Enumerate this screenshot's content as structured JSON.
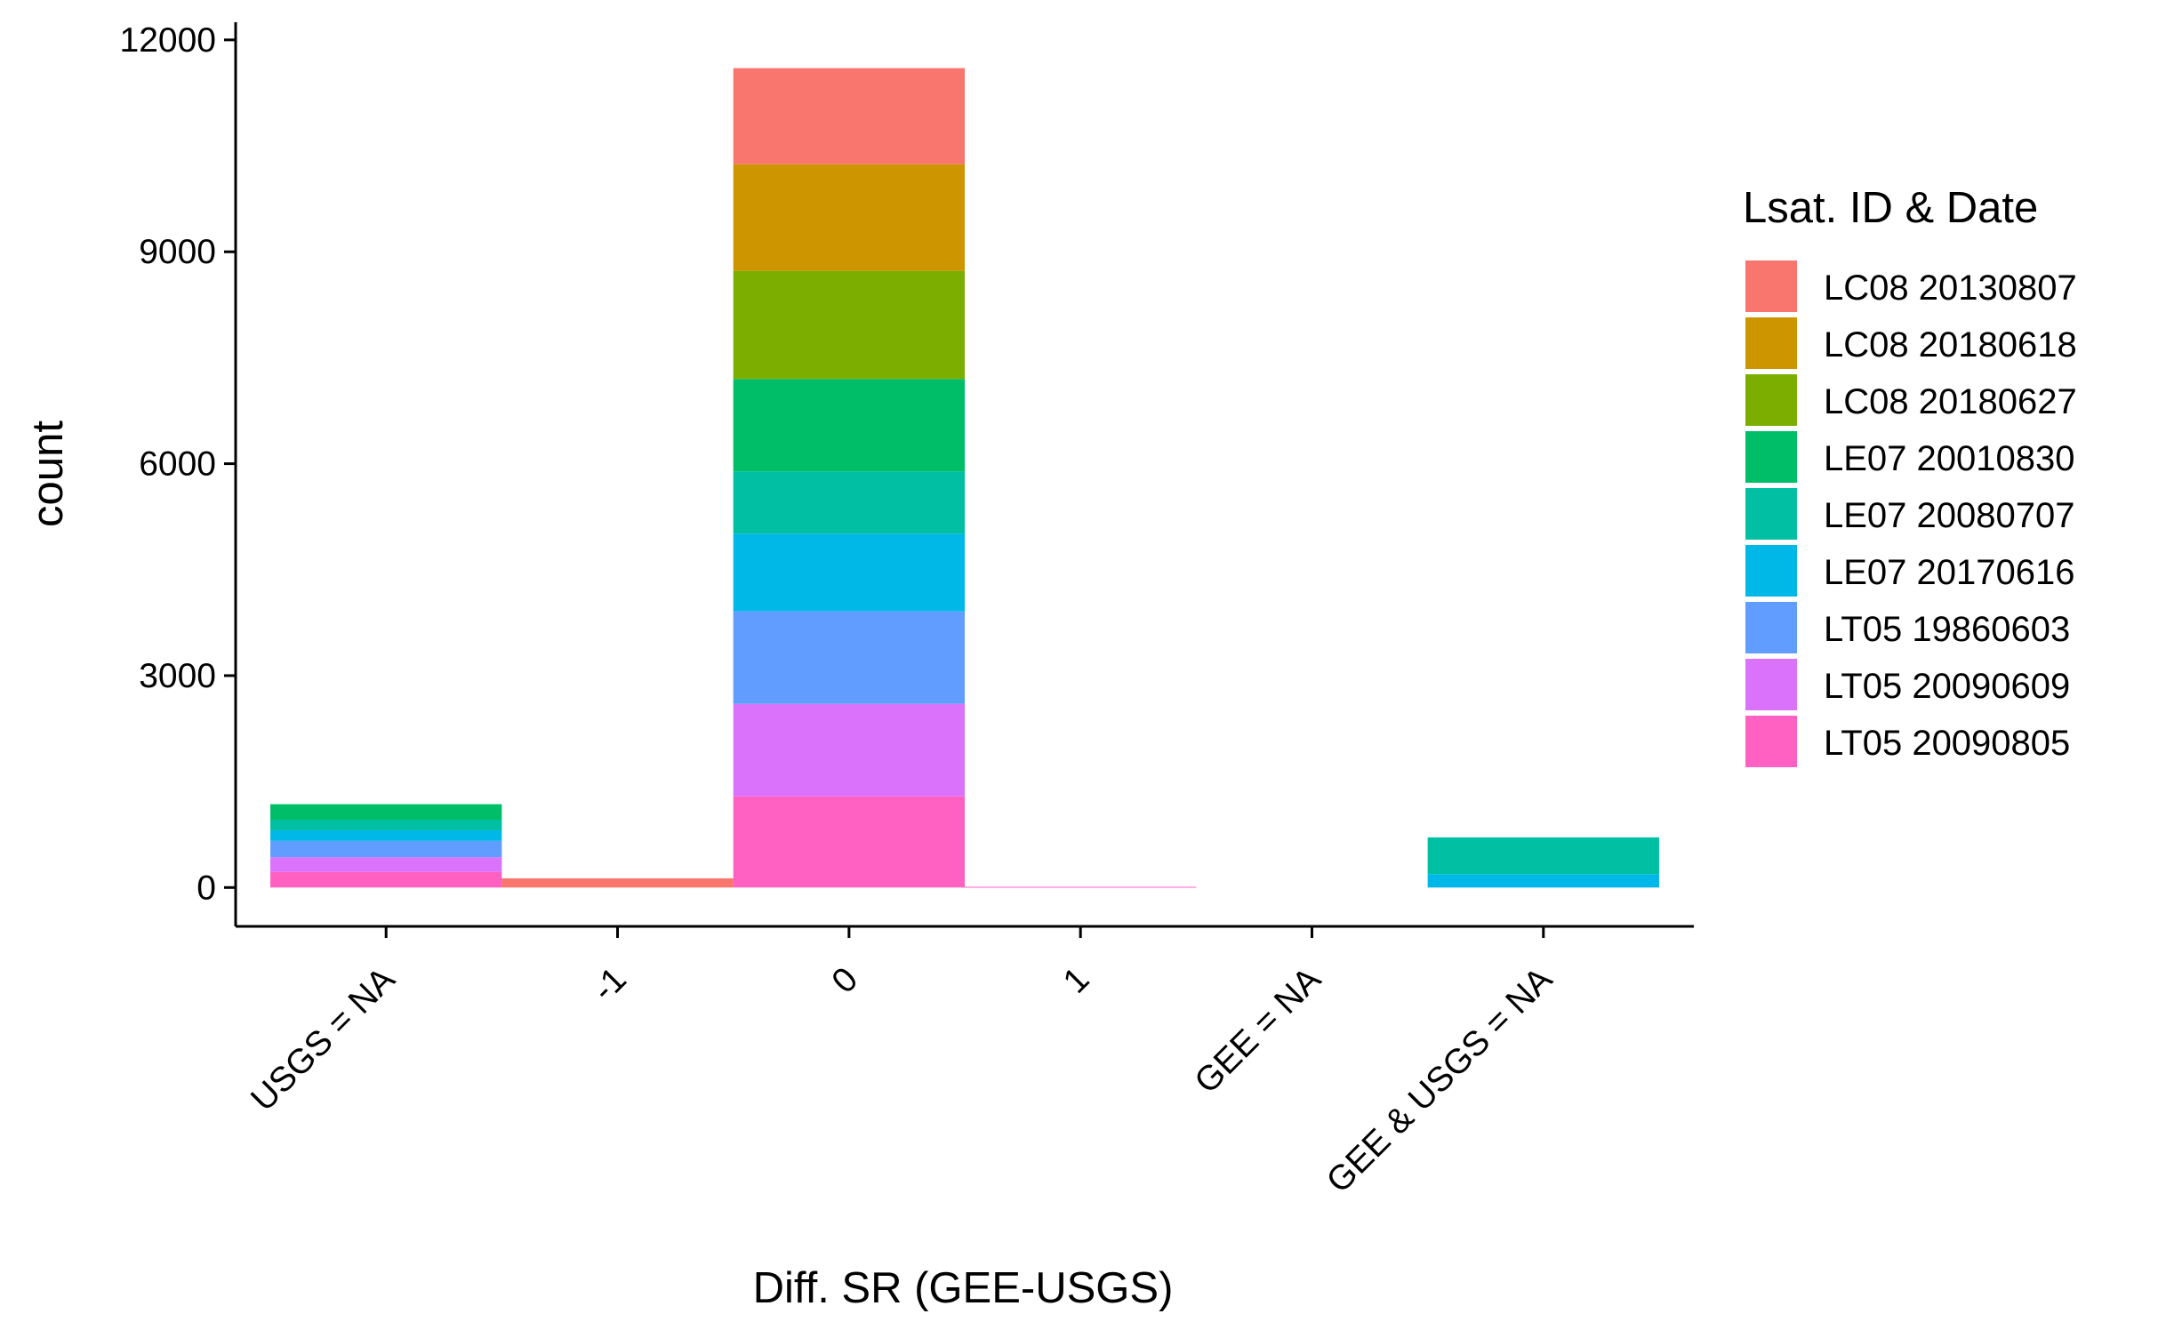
{
  "chart_data": {
    "type": "bar",
    "stacked": true,
    "title": "",
    "xlabel": "Diff. SR (GEE-USGS)",
    "ylabel": "count",
    "categories": [
      "USGS = NA",
      "-1",
      "0",
      "1",
      "GEE = NA",
      "GEE & USGS = NA"
    ],
    "ylim": [
      -550,
      12250
    ],
    "yticks": [
      0,
      3000,
      6000,
      9000,
      12000
    ],
    "ytick_labels": [
      "0",
      "3000",
      "6000",
      "9000",
      "12000"
    ],
    "grid": false,
    "legend": {
      "title": "Lsat. ID & Date",
      "position": "right"
    },
    "series": [
      {
        "name": "LC08 20130807",
        "color": "#F8766D",
        "values": [
          0,
          130,
          1360,
          0,
          0,
          0
        ]
      },
      {
        "name": "LC08 20180618",
        "color": "#CD9600",
        "values": [
          0,
          0,
          1510,
          0,
          0,
          0
        ]
      },
      {
        "name": "LC08 20180627",
        "color": "#7CAE00",
        "values": [
          0,
          0,
          1530,
          0,
          0,
          0
        ]
      },
      {
        "name": "LE07 20010830",
        "color": "#00BE67",
        "values": [
          220,
          0,
          1310,
          0,
          0,
          0
        ]
      },
      {
        "name": "LE07 20080707",
        "color": "#00BFA3",
        "values": [
          150,
          0,
          880,
          0,
          0,
          520
        ]
      },
      {
        "name": "LE07 20170616",
        "color": "#00B8E7",
        "values": [
          150,
          0,
          1100,
          0,
          0,
          190
        ]
      },
      {
        "name": "LT05 19860603",
        "color": "#619CFF",
        "values": [
          230,
          0,
          1310,
          0,
          0,
          0
        ]
      },
      {
        "name": "LT05 20090609",
        "color": "#DB72FB",
        "values": [
          210,
          0,
          1310,
          0,
          0,
          0
        ]
      },
      {
        "name": "LT05 20090805",
        "color": "#FF61C3",
        "values": [
          220,
          0,
          1290,
          10,
          0,
          0
        ]
      }
    ]
  }
}
